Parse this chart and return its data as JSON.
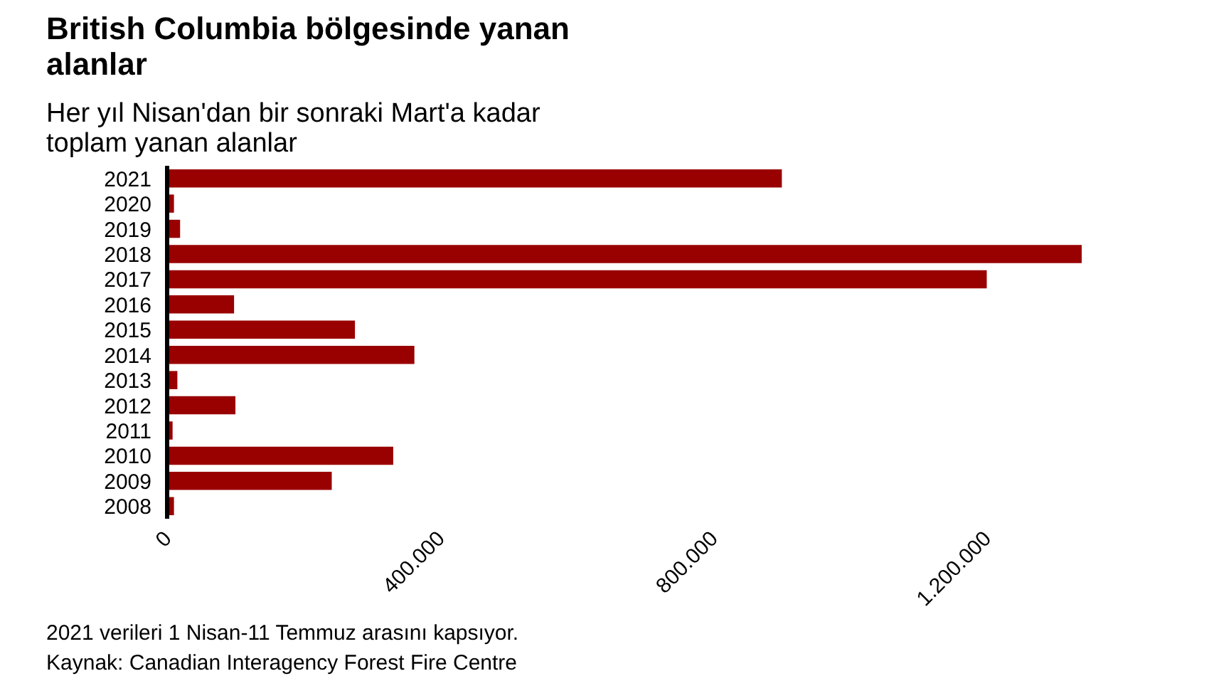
{
  "chart_data": {
    "type": "bar",
    "orientation": "horizontal",
    "title": "British Columbia bölgesinde yanan alanlar",
    "subtitle": "Her yıl Nisan'dan bir sonraki Mart'a kadar toplam yanan alanlar",
    "categories": [
      "2021",
      "2020",
      "2019",
      "2018",
      "2017",
      "2016",
      "2015",
      "2014",
      "2013",
      "2012",
      "2011",
      "2010",
      "2009",
      "2008"
    ],
    "values": [
      900000,
      10000,
      19000,
      1339000,
      1200000,
      98000,
      275000,
      362000,
      15000,
      100000,
      8000,
      331000,
      241000,
      10000
    ],
    "color": "#990000",
    "xlim": [
      0,
      1339000
    ],
    "xticks": [
      0,
      {
        "value": 400000,
        "label": "400.000"
      },
      {
        "value": 800000,
        "label": "800.000"
      },
      {
        "value": 1200000,
        "label": "1.200.000"
      }
    ],
    "grid": false,
    "annotations": [
      "2021 verileri 1 Nisan-11 Temmuz arasını kapsıyor.",
      "Kaynak: Canadian Interagency Forest Fire Centre"
    ]
  }
}
